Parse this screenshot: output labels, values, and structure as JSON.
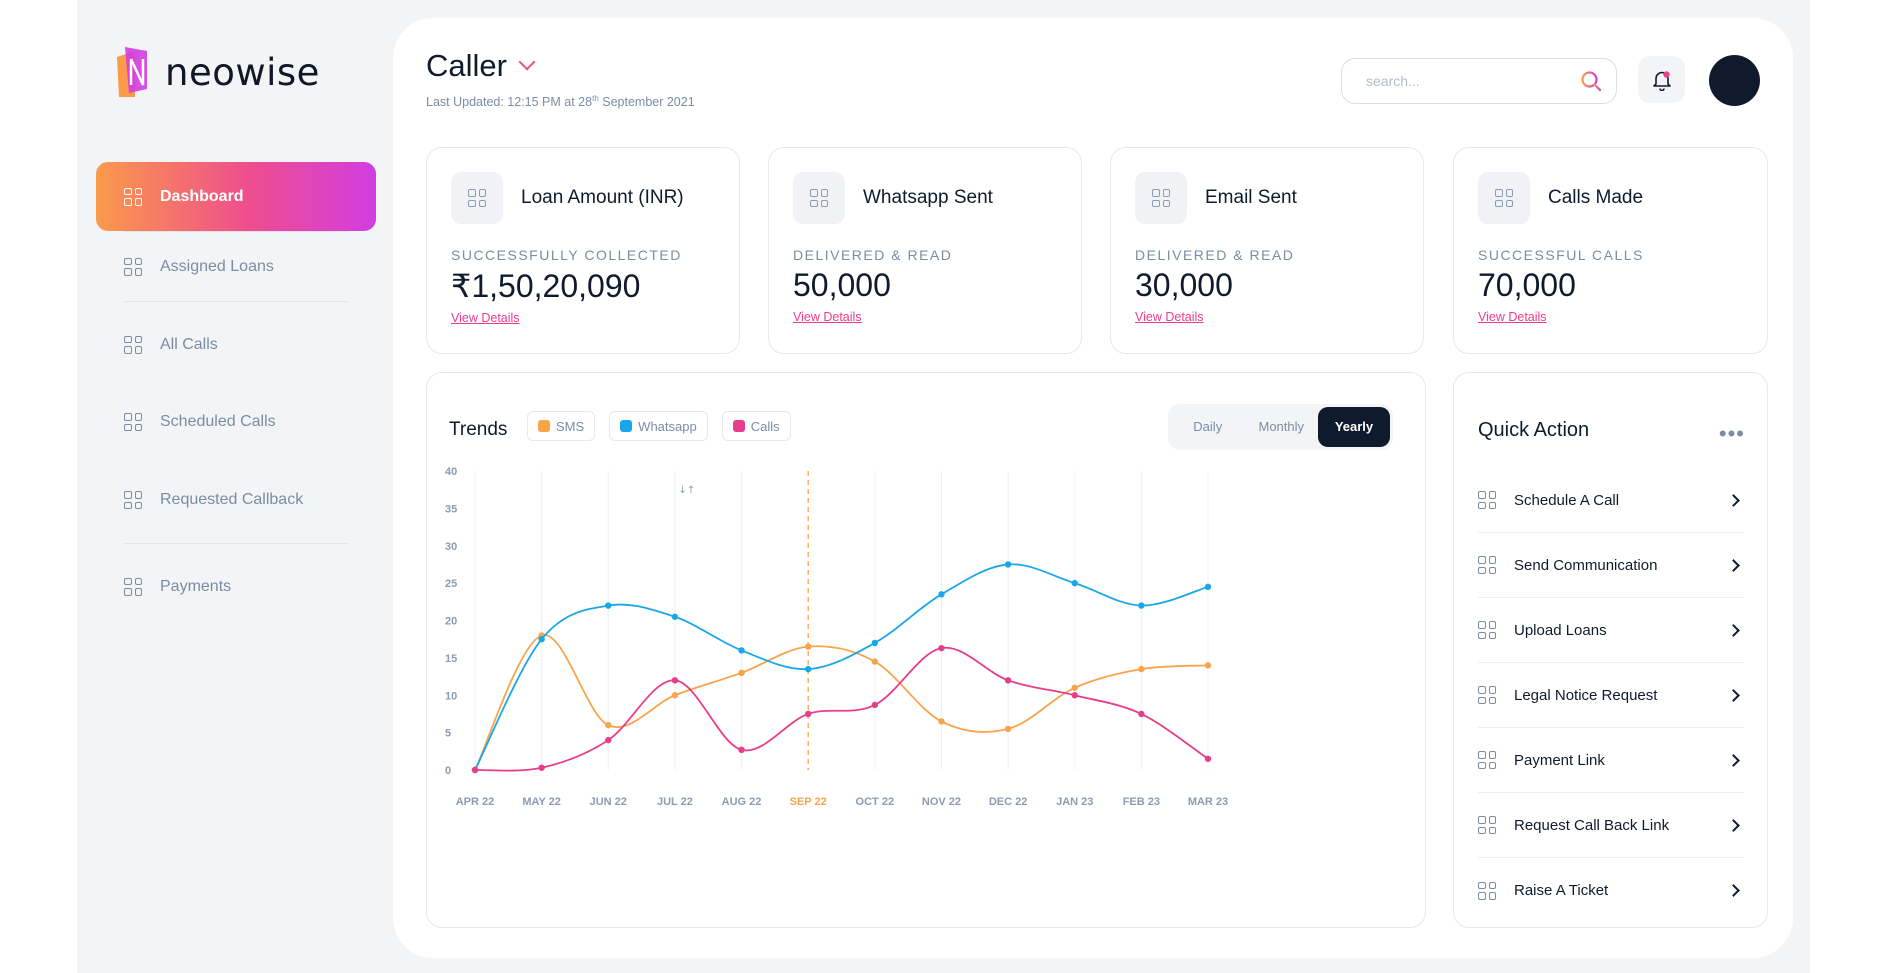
{
  "brand": {
    "name": "neowise"
  },
  "sidebar": {
    "items": [
      {
        "label": "Dashboard",
        "active": true
      },
      {
        "label": "Assigned Loans"
      },
      {
        "label": "All Calls"
      },
      {
        "label": "Scheduled Calls"
      },
      {
        "label": "Requested Callback"
      },
      {
        "label": "Payments"
      }
    ]
  },
  "header": {
    "title": "Caller",
    "updated_prefix": "Last Updated: 12:15 PM at 28",
    "updated_sup": "th",
    "updated_suffix": " September 2021",
    "search_placeholder": "search..."
  },
  "stats": [
    {
      "title": "Loan Amount (INR)",
      "subtitle": "SUCCESSFULLY COLLECTED",
      "value": "₹1,50,20,090",
      "link": "View Details"
    },
    {
      "title": "Whatsapp Sent",
      "subtitle": "DELIVERED & READ",
      "value": "50,000",
      "link": "View Details"
    },
    {
      "title": "Email Sent",
      "subtitle": "DELIVERED & READ",
      "value": "30,000",
      "link": "View Details"
    },
    {
      "title": "Calls Made",
      "subtitle": "SUCCESSFUL CALLS",
      "value": "70,000",
      "link": "View Details"
    }
  ],
  "trends": {
    "title": "Trends",
    "legend": [
      "SMS",
      "Whatsapp",
      "Calls"
    ],
    "periods": [
      "Daily",
      "Monthly",
      "Yearly"
    ],
    "selected_period": "Yearly"
  },
  "quick_action": {
    "title": "Quick Action",
    "items": [
      "Schedule A Call",
      "Send Communication",
      "Upload Loans",
      "Legal Notice Request",
      "Payment Link",
      "Request Call Back Link",
      "Raise A Ticket"
    ]
  },
  "colors": {
    "sms": "#f9a34a",
    "whatsapp": "#1aa7e8",
    "calls": "#e83d8a",
    "accent": "#ee4d8e",
    "dark": "#0f1b2d"
  },
  "chart_data": {
    "type": "line",
    "categories": [
      "APR 22",
      "MAY 22",
      "JUN 22",
      "JUL 22",
      "AUG 22",
      "SEP 22",
      "OCT 22",
      "NOV 22",
      "DEC 22",
      "JAN 23",
      "FEB 23",
      "MAR 23"
    ],
    "highlighted_category": "SEP 22",
    "ylim": [
      0,
      40
    ],
    "yticks": [
      0,
      5,
      10,
      15,
      20,
      25,
      30,
      35,
      40
    ],
    "grid": "vertical",
    "series": [
      {
        "name": "SMS",
        "color": "#f9a34a",
        "values": [
          0,
          18,
          6,
          10,
          13,
          16.5,
          14.5,
          6.5,
          5.5,
          11,
          13.5,
          14
        ]
      },
      {
        "name": "Whatsapp",
        "color": "#1aa7e8",
        "values": [
          0,
          17.5,
          22,
          20.5,
          16,
          13.5,
          17,
          23.5,
          27.5,
          25,
          22,
          24.5
        ]
      },
      {
        "name": "Calls",
        "color": "#e83d8a",
        "values": [
          0,
          0.3,
          4,
          12,
          2.7,
          7.5,
          8.7,
          16.3,
          12,
          10,
          7.5,
          1.5
        ]
      }
    ]
  }
}
